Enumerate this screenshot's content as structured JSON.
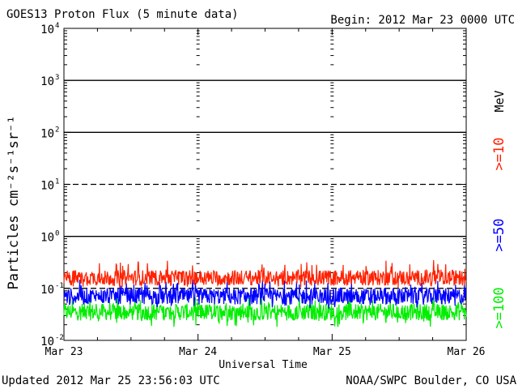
{
  "chart_data": {
    "type": "line",
    "title": "GOES13 Proton Flux (5 minute data)",
    "begin_label": "Begin: 2012 Mar 23 0000 UTC",
    "xlabel": "Universal Time",
    "ylabel": "Particles cm⁻²s⁻¹sr⁻¹",
    "yscale": "log",
    "ylim": [
      0.01,
      10000
    ],
    "y_ticks": [
      {
        "base": "10",
        "exp": "4"
      },
      {
        "base": "10",
        "exp": "3"
      },
      {
        "base": "10",
        "exp": "2"
      },
      {
        "base": "10",
        "exp": "1"
      },
      {
        "base": "10",
        "exp": "0"
      },
      {
        "base": "10",
        "exp": "-1"
      },
      {
        "base": "10",
        "exp": "-2"
      }
    ],
    "x_ticks": [
      "Mar 23",
      "Mar 24",
      "Mar 25",
      "Mar 26"
    ],
    "threshold_levels": [
      {
        "value": 1000,
        "style": "solid"
      },
      {
        "value": 100,
        "style": "solid"
      },
      {
        "value": 10,
        "style": "dashed"
      },
      {
        "value": 1,
        "style": "solid"
      },
      {
        "value": 0.1,
        "style": "dashed"
      }
    ],
    "series": [
      {
        "name": ">=10",
        "color": "#ff2000",
        "approx_median": 0.16,
        "approx_range": [
          0.1,
          0.35
        ]
      },
      {
        "name": ">=50",
        "color": "#0000ff",
        "approx_median": 0.07,
        "approx_range": [
          0.04,
          0.15
        ]
      },
      {
        "name": ">=100",
        "color": "#00ee00",
        "approx_median": 0.035,
        "approx_range": [
          0.018,
          0.07
        ]
      }
    ],
    "legend_unit": "MeV",
    "legend_position": "right",
    "grid": false
  },
  "footer": {
    "updated": "Updated 2012 Mar 25 23:56:03 UTC",
    "credit": "NOAA/SWPC Boulder, CO USA"
  }
}
